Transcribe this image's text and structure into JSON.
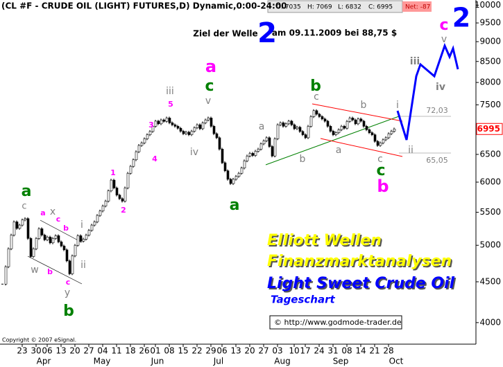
{
  "chart_data": {
    "type": "candlestick",
    "title": "(CL #F - CRUDE OIL (LIGHT) FUTURES,D) Dynamic,0:00-24:00",
    "header_stats": [
      "O: 7035",
      "H: 7069",
      "L: 6832",
      "C: 6995"
    ],
    "net": "Net: -87",
    "values": [
      4470,
      4700,
      4950,
      5150,
      5350,
      5250,
      5300,
      5380,
      5400,
      5100,
      4840,
      4950,
      5100,
      5245,
      5150,
      5080,
      5120,
      5035,
      5100,
      5140,
      5050,
      4990,
      4935,
      4780,
      4605,
      4850,
      5000,
      5140,
      5060,
      5090,
      5150,
      5220,
      5300,
      5350,
      5450,
      5520,
      5600,
      5680,
      5850,
      6035,
      5900,
      5780,
      5720,
      5680,
      5900,
      6155,
      6280,
      6400,
      6550,
      6670,
      6720,
      6800,
      6880,
      6945,
      7050,
      7155,
      7100,
      7180,
      7150,
      7220,
      7120,
      7080,
      7050,
      7010,
      6950,
      6900,
      6930,
      6880,
      6950,
      7020,
      7080,
      7000,
      7120,
      7180,
      7220,
      7050,
      6900,
      6820,
      6600,
      6345,
      6200,
      6050,
      5975,
      6050,
      6100,
      6155,
      6250,
      6380,
      6470,
      6520,
      6480,
      6560,
      6600,
      6700,
      6760,
      6820,
      6650,
      6470,
      6800,
      7080,
      7120,
      7050,
      7100,
      7155,
      7080,
      7000,
      7030,
      6945,
      6880,
      6820,
      7050,
      7250,
      7375,
      7300,
      7250,
      7200,
      7155,
      7050,
      6950,
      6880,
      6920,
      6980,
      7050,
      7010,
      7150,
      7220,
      7180,
      7100,
      7200,
      7155,
      7050,
      6980,
      6920,
      6880,
      6750,
      6670,
      6720,
      6780,
      6820,
      6900,
      6950,
      6995
    ],
    "yscale": "log",
    "ylim": [
      3850,
      10150
    ],
    "yticks": [
      4000,
      4500,
      5000,
      5500,
      6000,
      6500,
      7000,
      7500,
      8000,
      8500,
      9000,
      9500,
      10000
    ],
    "last_price": 6995,
    "last_price_color": "#ff0000",
    "xticks": [
      {
        "value": 7,
        "label": "23"
      },
      {
        "value": 12,
        "label": "30"
      },
      {
        "value": 16,
        "label": "06"
      },
      {
        "value": 21,
        "label": "13"
      },
      {
        "value": 26,
        "label": "20"
      },
      {
        "value": 31,
        "label": "27"
      },
      {
        "value": 36,
        "label": "04"
      },
      {
        "value": 41,
        "label": "11"
      },
      {
        "value": 46,
        "label": "18"
      },
      {
        "value": 51,
        "label": "26"
      },
      {
        "value": 55,
        "label": "01"
      },
      {
        "value": 60,
        "label": "08"
      },
      {
        "value": 65,
        "label": "15"
      },
      {
        "value": 70,
        "label": "22"
      },
      {
        "value": 75,
        "label": "29"
      },
      {
        "value": 79,
        "label": "06"
      },
      {
        "value": 84,
        "label": "13"
      },
      {
        "value": 89,
        "label": "20"
      },
      {
        "value": 94,
        "label": "27"
      },
      {
        "value": 99,
        "label": "03"
      },
      {
        "value": 105,
        "label": "10"
      },
      {
        "value": 109,
        "label": "17"
      },
      {
        "value": 114,
        "label": "24"
      },
      {
        "value": 119,
        "label": "31"
      },
      {
        "value": 124,
        "label": "08"
      },
      {
        "value": 129,
        "label": "14"
      },
      {
        "value": 134,
        "label": "21"
      },
      {
        "value": 139,
        "label": "28"
      }
    ],
    "month_ticks": [
      {
        "value": 15,
        "label": "Apr"
      },
      {
        "value": 36,
        "label": "May"
      },
      {
        "value": 56,
        "label": "Jun"
      },
      {
        "value": 78,
        "label": "Jul"
      },
      {
        "value": 101,
        "label": "Aug"
      },
      {
        "value": 122,
        "label": "Sep"
      },
      {
        "value": 142,
        "label": "Oct"
      }
    ],
    "annotations": [
      {
        "text": "a",
        "color": "#008000"
      },
      {
        "text": "c",
        "color": "#808080"
      },
      {
        "text": "w",
        "color": "#808080"
      },
      {
        "text": "a",
        "color": "#ff00ff"
      },
      {
        "text": "x",
        "color": "#808080"
      },
      {
        "text": "c",
        "color": "#ff00ff"
      },
      {
        "text": "b",
        "color": "#ff00ff"
      },
      {
        "text": "b",
        "color": "#ff00ff"
      },
      {
        "text": "c",
        "color": "#ff00ff"
      },
      {
        "text": "y",
        "color": "#808080"
      },
      {
        "text": "b",
        "color": "#008000"
      },
      {
        "text": "i",
        "color": "#808080"
      },
      {
        "text": "ii",
        "color": "#808080"
      },
      {
        "text": "1",
        "color": "#ff00ff"
      },
      {
        "text": "2",
        "color": "#ff00ff"
      },
      {
        "text": "3",
        "color": "#ff00ff"
      },
      {
        "text": "4",
        "color": "#ff00ff"
      },
      {
        "text": "5",
        "color": "#ff00ff"
      },
      {
        "text": "iii",
        "color": "#808080"
      },
      {
        "text": "iv",
        "color": "#808080"
      },
      {
        "text": "v",
        "color": "#808080"
      },
      {
        "text": "c",
        "color": "#008000"
      },
      {
        "text": "a",
        "color": "#ff00ff"
      },
      {
        "text": "a",
        "color": "#008000"
      },
      {
        "text": "a",
        "color": "#808080"
      },
      {
        "text": "b",
        "color": "#808080"
      },
      {
        "text": "c",
        "color": "#808080"
      },
      {
        "text": "b",
        "color": "#008000"
      },
      {
        "text": "a",
        "color": "#808080"
      },
      {
        "text": "b",
        "color": "#808080"
      },
      {
        "text": "c",
        "color": "#808080"
      },
      {
        "text": "c",
        "color": "#008000"
      },
      {
        "text": "b",
        "color": "#ff00ff"
      },
      {
        "text": "i",
        "color": "#808080"
      },
      {
        "text": "ii",
        "color": "#808080"
      },
      {
        "text": "72,03",
        "color": "#808080"
      },
      {
        "text": "65,05",
        "color": "#808080"
      },
      {
        "text": "iii",
        "color": "#808080"
      },
      {
        "text": "iv",
        "color": "#808080"
      },
      {
        "text": "v",
        "color": "#808080"
      },
      {
        "text": "c",
        "color": "#ff00ff"
      },
      {
        "text": "2",
        "color": "#0000ff"
      },
      {
        "text": "Ziel der Welle",
        "color": "#000000"
      },
      {
        "text": "2",
        "color": "#0000ff"
      },
      {
        "text": "am 09.11.2009 bei 88,75 $",
        "color": "#000000"
      },
      {
        "text": "Elliott Wellen",
        "color": "#ffff00"
      },
      {
        "text": "Finanzmarktanalysen",
        "color": "#ffff00"
      },
      {
        "text": "Light Sweet Crude Oil",
        "color": "#0000ff"
      },
      {
        "text": "Tageschart",
        "color": "#0000ff"
      }
    ],
    "source": "© http://www.godmode-trader.de",
    "copyright": "Copyright © 2007 eSignal."
  }
}
